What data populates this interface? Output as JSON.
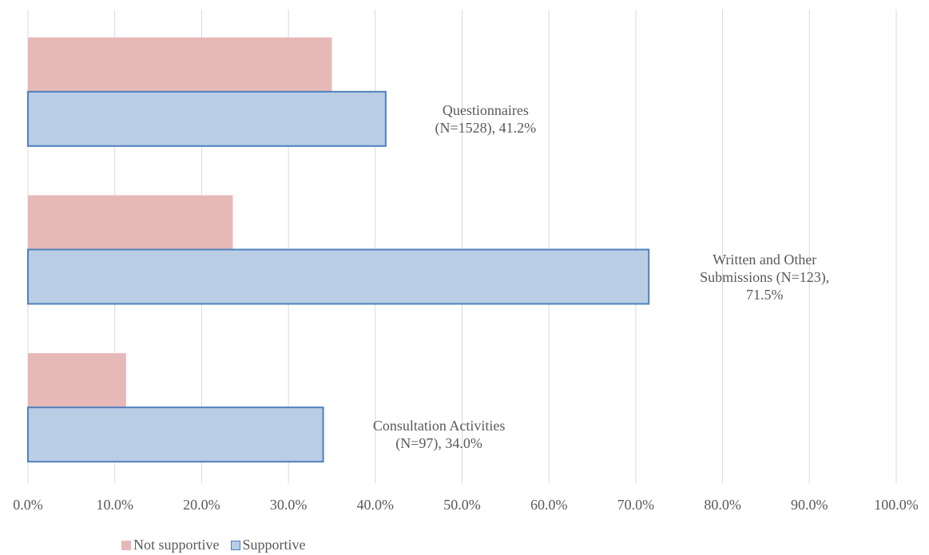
{
  "chart_data": {
    "type": "hbar",
    "series": [
      {
        "name": "Not supportive",
        "color": "#e6b9b8",
        "values": [
          35.0,
          23.6,
          11.3
        ]
      },
      {
        "name": "Supportive",
        "color": "#b9cde5",
        "edgecolor": "#4f81bd",
        "values": [
          41.2,
          71.5,
          34.0
        ],
        "value_labels": [
          "Questionnaires (N=1528), 41.2%",
          "Written and Other Submissions (N=123), 71.5%",
          "Consultation Activities (N=97), 34.0%"
        ]
      }
    ],
    "xlim": [
      0,
      100
    ],
    "xticks": [
      {
        "value": 0,
        "label": "0.0%"
      },
      {
        "value": 10,
        "label": "10.0%"
      },
      {
        "value": 20,
        "label": "20.0%"
      },
      {
        "value": 30,
        "label": "30.0%"
      },
      {
        "value": 40,
        "label": "40.0%"
      },
      {
        "value": 50,
        "label": "50.0%"
      },
      {
        "value": 60,
        "label": "60.0%"
      },
      {
        "value": 70,
        "label": "70.0%"
      },
      {
        "value": 80,
        "label": "80.0%"
      },
      {
        "value": 90,
        "label": "90.0%"
      },
      {
        "value": 100,
        "label": "100.0%"
      }
    ],
    "grid": true,
    "legend": "bottom"
  }
}
